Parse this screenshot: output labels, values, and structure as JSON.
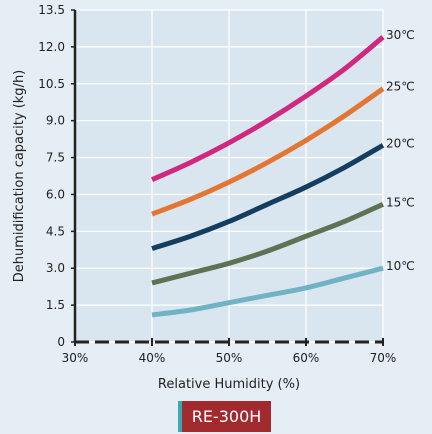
{
  "chart_data": {
    "type": "line",
    "title": "",
    "xlabel": "Relative Humidity (%)",
    "ylabel": "Dehumidification capacity (kg/h)",
    "x": [
      40,
      45,
      50,
      55,
      60,
      65,
      70
    ],
    "xlim": [
      30,
      70
    ],
    "ylim": [
      0,
      13.5
    ],
    "x_ticks": [
      "30%",
      "40%",
      "50%",
      "60%",
      "70%"
    ],
    "y_ticks": [
      "0",
      "1.5",
      "3.0",
      "4.5",
      "6.0",
      "7.5",
      "9.0",
      "10.5",
      "12.0",
      "13.5"
    ],
    "grid": true,
    "legend": "right",
    "series": [
      {
        "name": "30℃",
        "color": "#d0287f",
        "values": [
          6.6,
          7.3,
          8.1,
          9.0,
          10.0,
          11.1,
          12.4
        ]
      },
      {
        "name": "25℃",
        "color": "#e47634",
        "values": [
          5.2,
          5.8,
          6.5,
          7.3,
          8.2,
          9.2,
          10.3
        ]
      },
      {
        "name": "20℃",
        "color": "#153d5f",
        "values": [
          3.8,
          4.3,
          4.9,
          5.6,
          6.3,
          7.1,
          8.0
        ]
      },
      {
        "name": "15℃",
        "color": "#5d7354",
        "values": [
          2.4,
          2.8,
          3.2,
          3.7,
          4.3,
          4.9,
          5.6
        ]
      },
      {
        "name": "10℃",
        "color": "#6fb3c4",
        "values": [
          1.1,
          1.3,
          1.6,
          1.9,
          2.2,
          2.6,
          3.0
        ]
      }
    ]
  },
  "model_label": "RE-300H"
}
